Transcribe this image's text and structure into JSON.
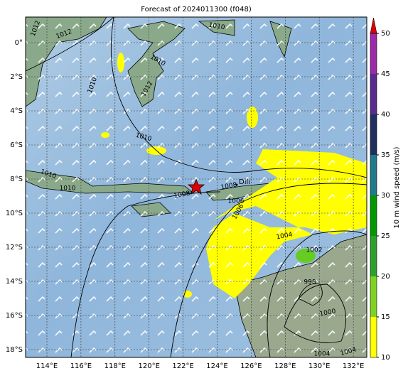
{
  "title": "Forecast of 2024011300 (f048)",
  "lon_labels": [
    "114°E",
    "116°E",
    "118°E",
    "120°E",
    "122°E",
    "124°E",
    "126°E",
    "128°E",
    "130°E",
    "132°E"
  ],
  "lat_labels": [
    "0°",
    "2°S",
    "4°S",
    "6°S",
    "8°S",
    "10°S",
    "12°S",
    "14°S",
    "16°S",
    "18°S"
  ],
  "place": "Dili",
  "contour_labels": [
    "1012",
    "1012",
    "1010",
    "1010",
    "1012",
    "1010",
    "1010",
    "1010",
    "1010",
    "1008",
    "1008",
    "1006",
    "1006",
    "1004",
    "1002",
    "998",
    "1000",
    "1004",
    "1004"
  ],
  "colorbar": {
    "label": "10 m wind speed (m/s)",
    "ticks": [
      10,
      15,
      20,
      25,
      30,
      35,
      40,
      45,
      50
    ],
    "colors": [
      "#ffff00",
      "#7fd320",
      "#2ca02c",
      "#009900",
      "#1f7a8c",
      "#1f2f5f",
      "#5a2a90",
      "#9c2aa8"
    ],
    "extend_color": "#e00000"
  }
}
